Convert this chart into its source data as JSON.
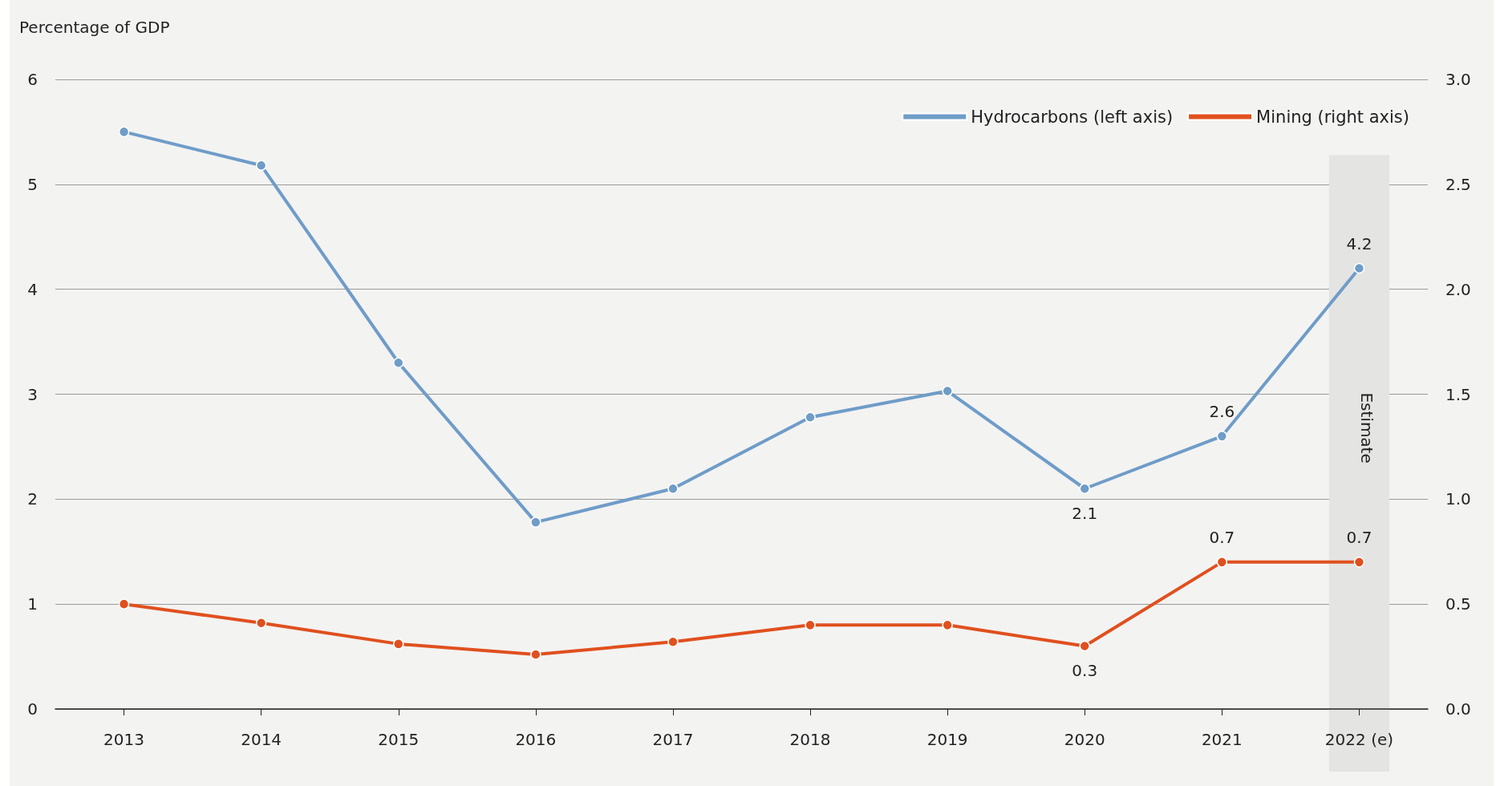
{
  "chart_data": {
    "type": "line",
    "ylabel": "Percentage of GDP",
    "categories": [
      "2013",
      "2014",
      "2015",
      "2016",
      "2017",
      "2018",
      "2019",
      "2020",
      "2021",
      "2022 (e)"
    ],
    "series": [
      {
        "name": "Hydrocarbons (left axis)",
        "color": "#6f9cc8",
        "values": [
          5.5,
          5.18,
          3.3,
          1.78,
          2.1,
          2.78,
          3.03,
          2.1,
          2.6,
          4.2
        ],
        "value_labels": [
          null,
          null,
          null,
          null,
          null,
          null,
          null,
          "2.1",
          "2.6",
          "4.2"
        ]
      },
      {
        "name": "Mining (right axis)",
        "color": "#e0501e",
        "axis": "y2",
        "values": [
          0.5,
          0.41,
          0.31,
          0.26,
          0.32,
          0.4,
          0.4,
          0.3,
          0.7,
          0.7
        ],
        "value_labels": [
          null,
          null,
          null,
          null,
          null,
          null,
          null,
          "0.3",
          "0.7",
          "0.7"
        ]
      }
    ],
    "ylim": [
      0,
      6
    ],
    "yticks": [
      0,
      1,
      2,
      3,
      4,
      5,
      6
    ],
    "y2lim": [
      0,
      3
    ],
    "y2ticks": [
      {
        "value": 0,
        "label": "0.0"
      },
      0.5,
      {
        "value": 1,
        "label": "1.0"
      },
      1.5,
      {
        "value": 2,
        "label": "2.0"
      },
      2.5,
      {
        "value": 3,
        "label": "3.0"
      }
    ],
    "bands": [
      {
        "axis": "x",
        "from": "2022 (e)",
        "to": "2022 (e)",
        "label": "Estimate",
        "color": "#e4e4e2"
      }
    ],
    "grid": "y",
    "legend": "top right",
    "marker": "circle",
    "line_style": "solid"
  }
}
